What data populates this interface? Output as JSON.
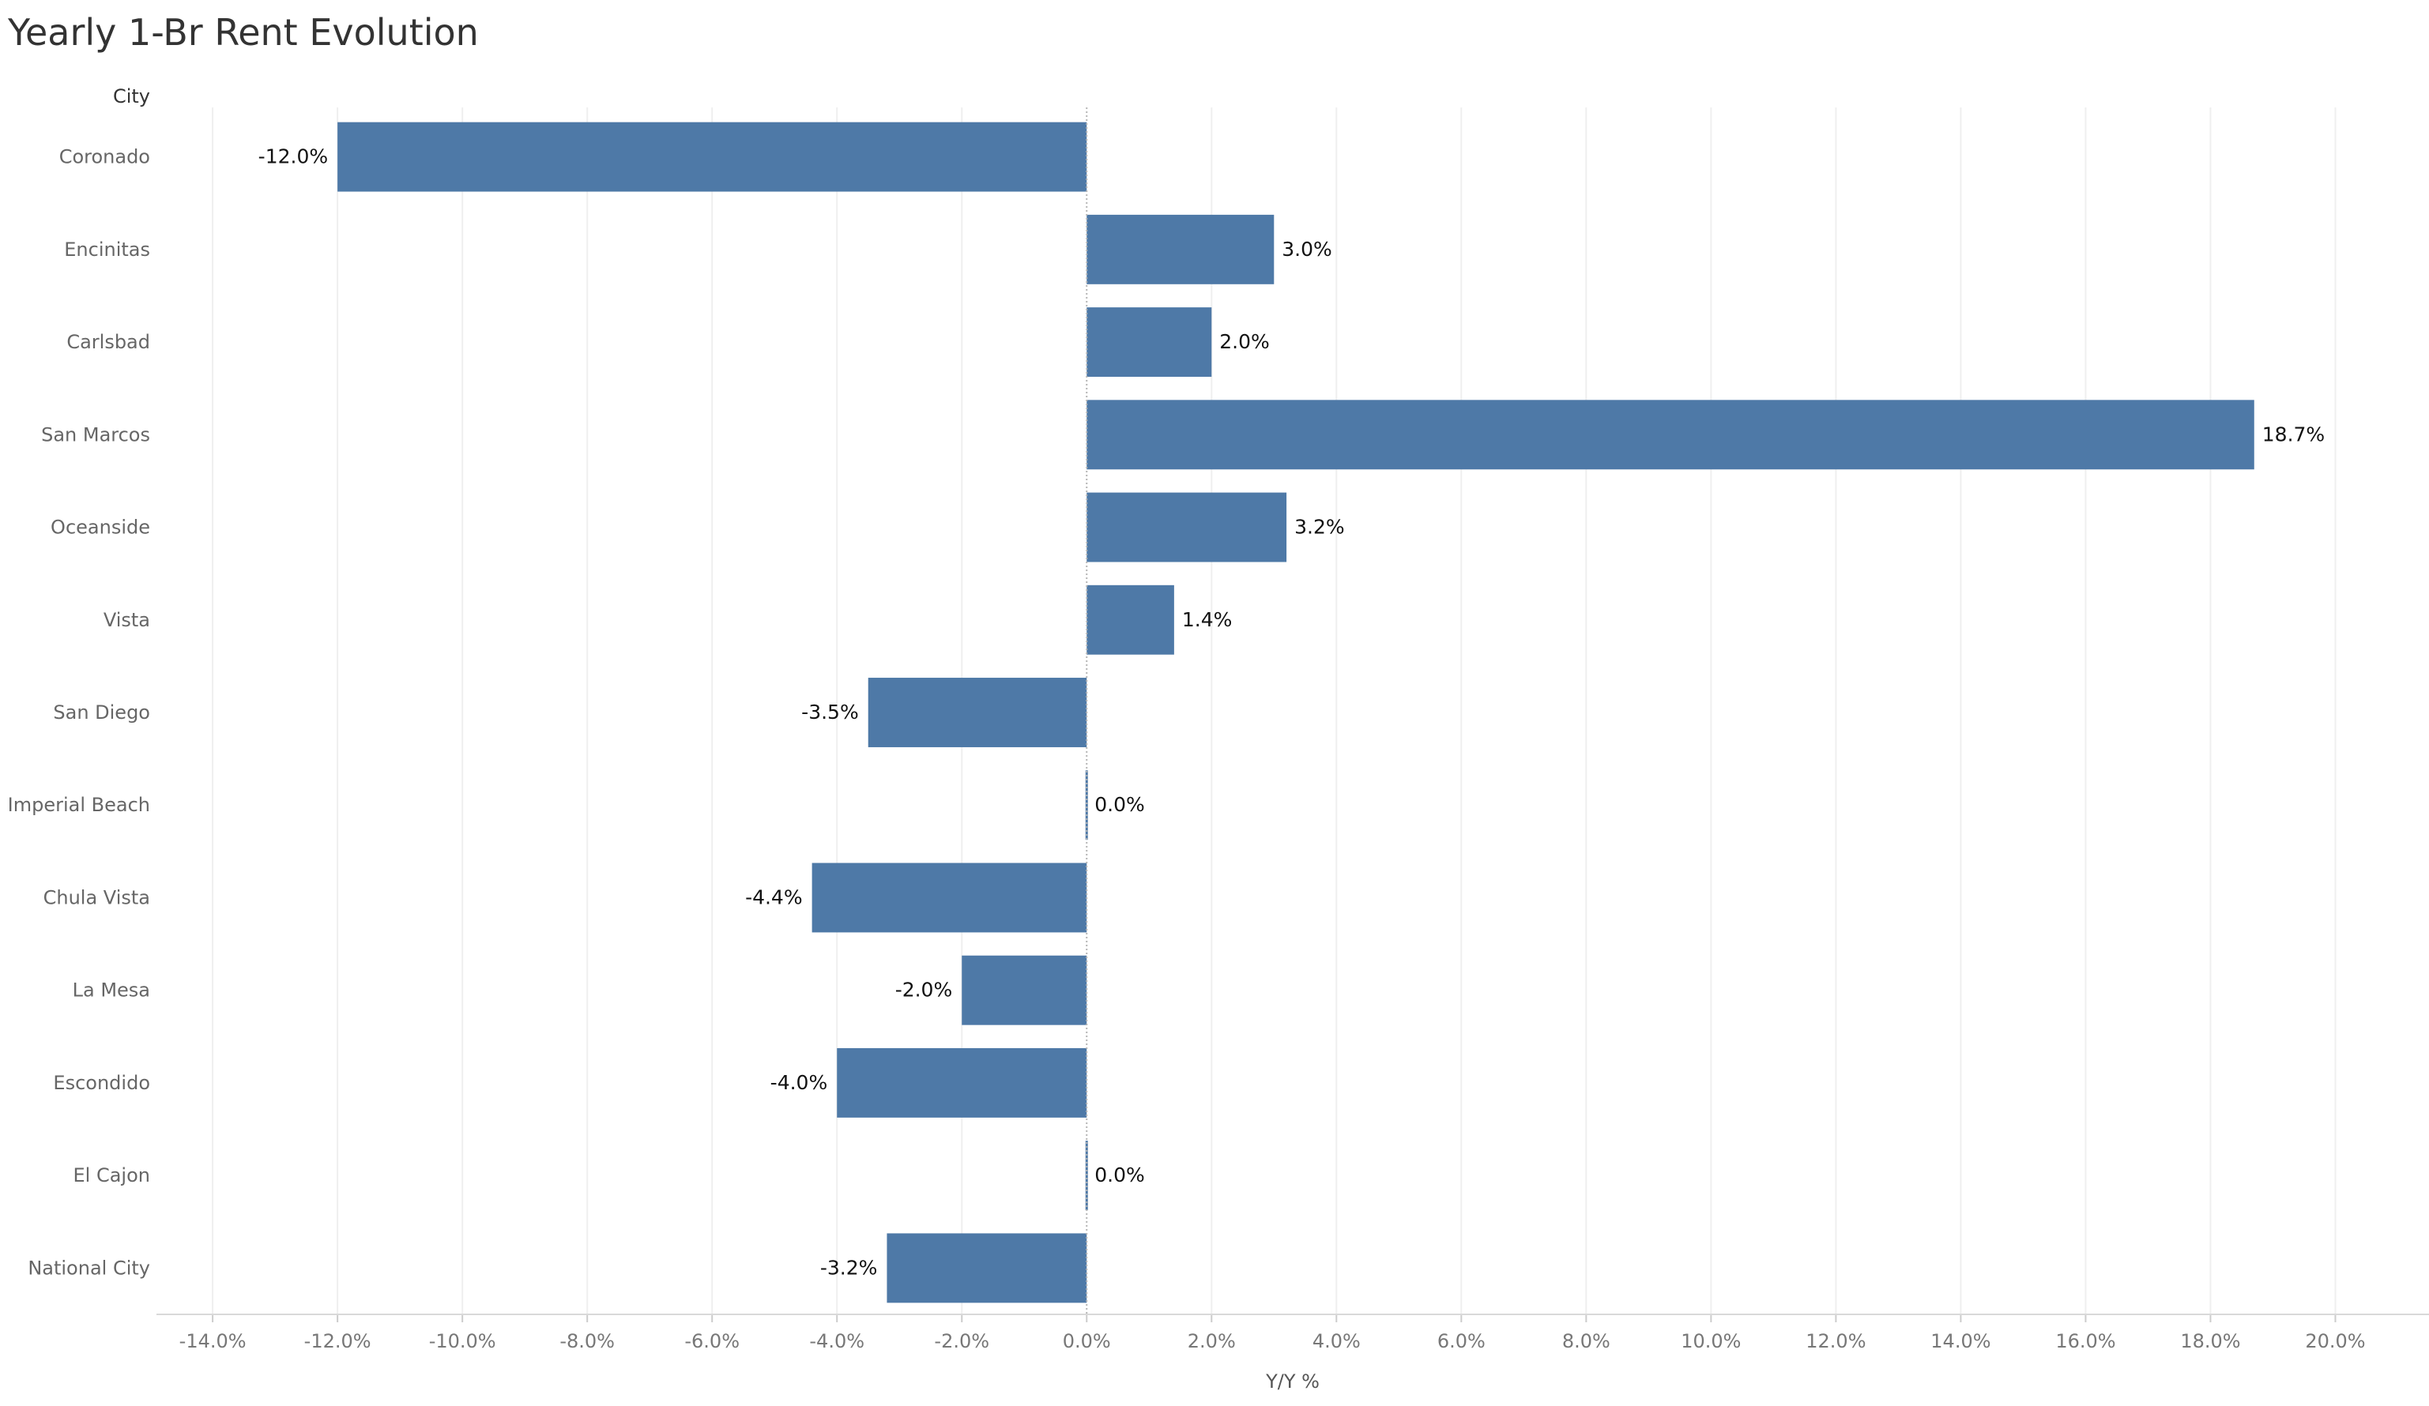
{
  "title": "Yearly 1-Br Rent Evolution",
  "chart_data": {
    "type": "bar",
    "orientation": "horizontal",
    "title": "Yearly 1-Br Rent Evolution",
    "row_header": "City",
    "xlabel": "Y/Y %",
    "ylabel": "City",
    "categories": [
      "Coronado",
      "Encinitas",
      "Carlsbad",
      "San Marcos",
      "Oceanside",
      "Vista",
      "San Diego",
      "Imperial Beach",
      "Chula Vista",
      "La Mesa",
      "Escondido",
      "El Cajon",
      "National City"
    ],
    "values": [
      -12.0,
      3.0,
      2.0,
      18.7,
      3.2,
      1.4,
      -3.5,
      0.0,
      -4.4,
      -2.0,
      -4.0,
      0.0,
      -3.2
    ],
    "data_labels": [
      "-12.0%",
      "3.0%",
      "2.0%",
      "18.7%",
      "3.2%",
      "1.4%",
      "-3.5%",
      "0.0%",
      "-4.4%",
      "-2.0%",
      "-4.0%",
      "0.0%",
      "-3.2%"
    ],
    "xticks": [
      -14,
      -12,
      -10,
      -8,
      -6,
      -4,
      -2,
      0,
      2,
      4,
      6,
      8,
      10,
      12,
      14,
      16,
      18,
      20
    ],
    "xtick_labels": [
      "-14.0%",
      "-12.0%",
      "-10.0%",
      "-8.0%",
      "-6.0%",
      "-4.0%",
      "-2.0%",
      "0.0%",
      "2.0%",
      "4.0%",
      "6.0%",
      "8.0%",
      "10.0%",
      "12.0%",
      "14.0%",
      "16.0%",
      "18.0%",
      "20.0%"
    ],
    "xlim": [
      -14.9,
      21.5
    ],
    "grid": true,
    "bar_color": "#4e79a7"
  }
}
